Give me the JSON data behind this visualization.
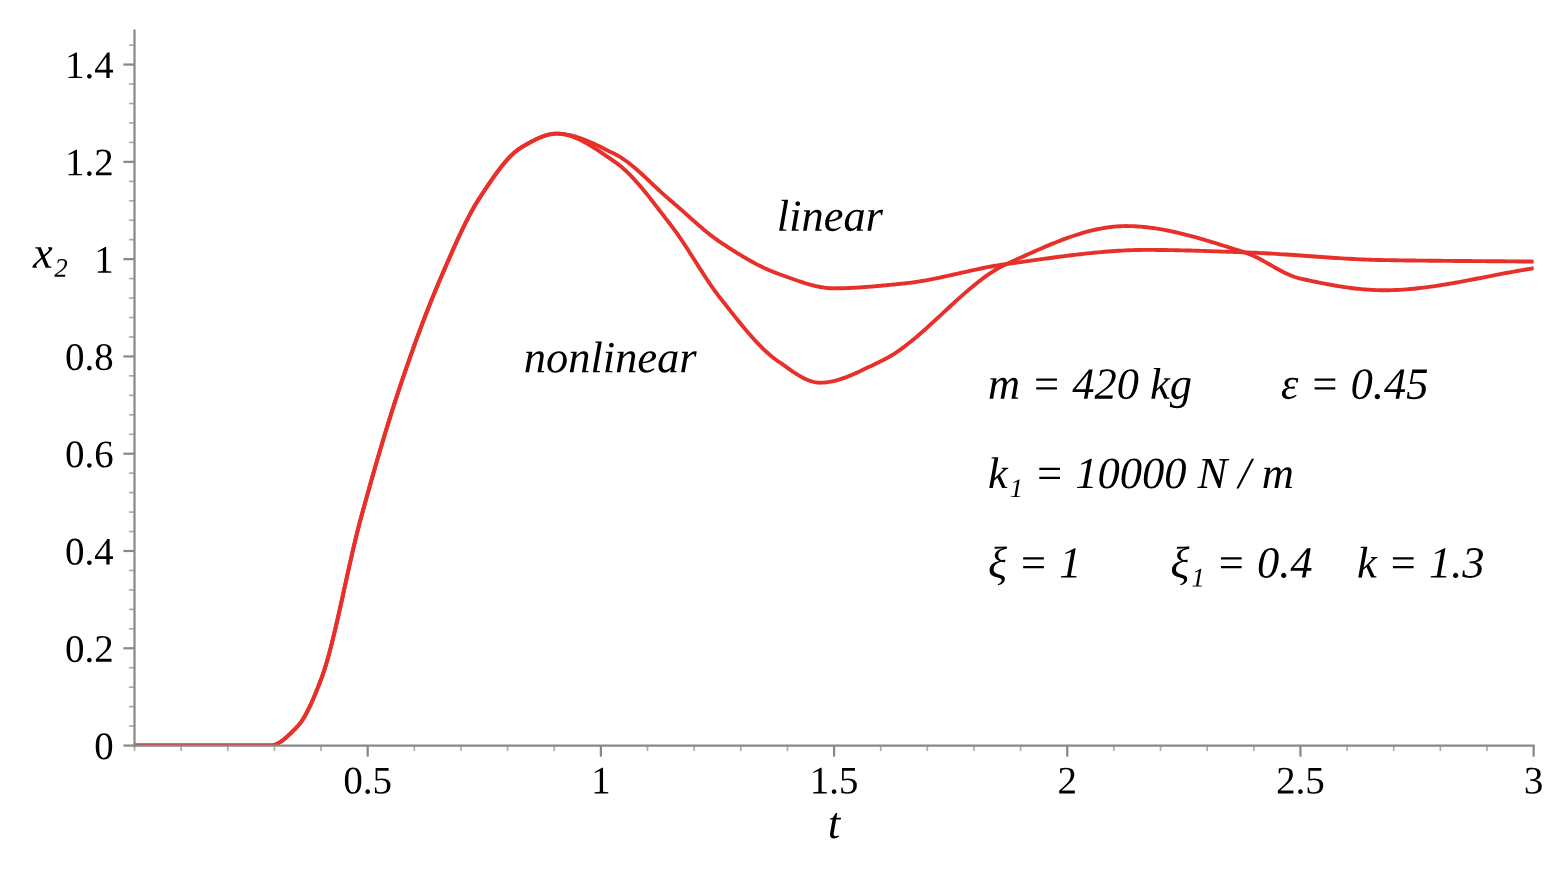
{
  "chart_data": {
    "type": "line",
    "xlabel": "t",
    "ylabel": "x₂",
    "xlim": [
      0,
      3
    ],
    "ylim": [
      0,
      1.47
    ],
    "xticks": [
      0.5,
      1,
      1.5,
      2,
      2.5,
      3
    ],
    "yticks": [
      0,
      0.2,
      0.4,
      0.6,
      0.8,
      1,
      1.2,
      1.4
    ],
    "grid": false,
    "legend": false,
    "marker": "none",
    "line_style": "solid",
    "series": [
      {
        "color": "#e8302a",
        "x": [
          0,
          0.29,
          0.35,
          0.4,
          0.485,
          0.57,
          0.656,
          0.74,
          0.83,
          0.905,
          1.03,
          1.15,
          1.256,
          1.38,
          1.5,
          1.65,
          1.87,
          2.17,
          2.38,
          2.68,
          3.0
        ],
        "values": [
          0,
          0,
          0.04,
          0.136,
          0.466,
          0.74,
          0.96,
          1.126,
          1.23,
          1.258,
          1.216,
          1.12,
          1.035,
          0.97,
          0.94,
          0.95,
          0.99,
          1.019,
          1.014,
          0.998,
          0.995
        ]
      },
      {
        "color": "#e8302a",
        "x": [
          0,
          0.29,
          0.35,
          0.4,
          0.485,
          0.57,
          0.656,
          0.74,
          0.83,
          0.905,
          1.03,
          1.15,
          1.256,
          1.38,
          1.47,
          1.6,
          1.87,
          2.126,
          2.38,
          2.5,
          2.68,
          3.0
        ],
        "values": [
          0,
          0,
          0.04,
          0.136,
          0.466,
          0.74,
          0.96,
          1.126,
          1.23,
          1.258,
          1.2,
          1.07,
          0.92,
          0.79,
          0.746,
          0.79,
          0.99,
          1.068,
          1.014,
          0.96,
          0.936,
          0.981
        ]
      }
    ],
    "annotations": [
      "linear",
      "nonlinear",
      "m = 420 kg        ε = 0.45",
      "k₁ = 10000 N / m",
      "ξ = 1        ξ₁ = 0.4    k = 1.3"
    ]
  }
}
